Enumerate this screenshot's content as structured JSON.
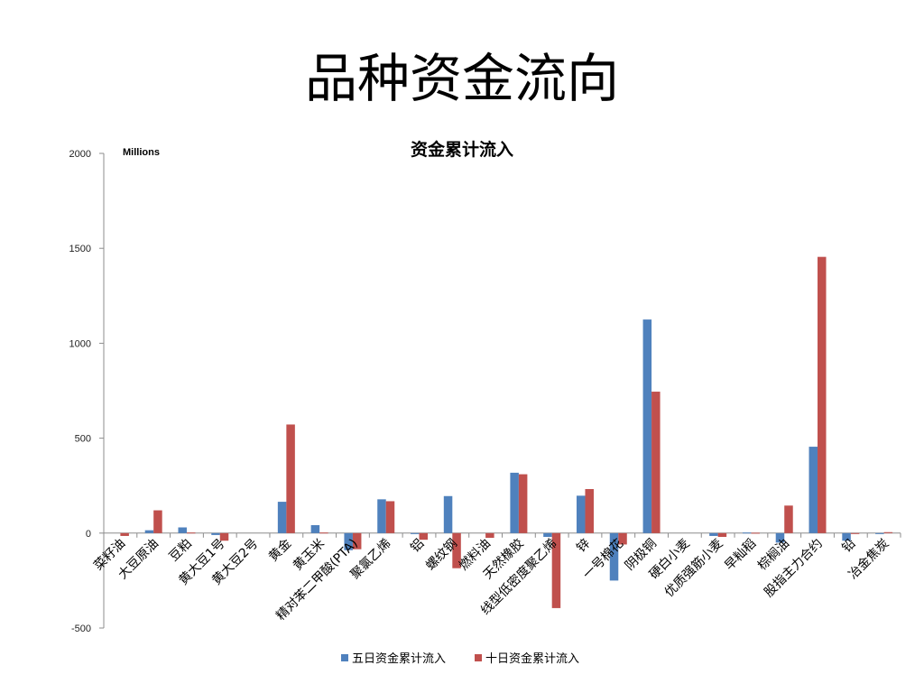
{
  "page": {
    "title": "品种资金流向"
  },
  "chart_data": {
    "type": "bar",
    "title": "资金累计流入",
    "unit_label": "Millions",
    "ylim": [
      -500,
      2000
    ],
    "yticks": [
      -500,
      0,
      500,
      1000,
      1500,
      2000
    ],
    "grid": false,
    "legend_position": "bottom",
    "categories": [
      "菜籽油",
      "大豆原油",
      "豆粕",
      "黄大豆1号",
      "黄大豆2号",
      "黄金",
      "黄玉米",
      "精对苯二甲酸(PTA)",
      "聚氯乙烯",
      "铝",
      "螺纹钢",
      "燃料油",
      "天然橡胶",
      "线型低密度聚乙烯",
      "锌",
      "一号棉花",
      "阴极铜",
      "硬白小麦",
      "优质强筋小麦",
      "早籼稻",
      "棕榈油",
      "股指主力合约",
      "铅",
      "冶金焦炭"
    ],
    "series": [
      {
        "name": "五日资金累计流入",
        "color": "#4F81BD",
        "values": [
          0,
          15,
          30,
          -10,
          0,
          165,
          42,
          -90,
          178,
          -5,
          195,
          0,
          318,
          -20,
          197,
          -250,
          1125,
          0,
          -15,
          3,
          -50,
          455,
          -40,
          -5
        ]
      },
      {
        "name": "十日资金累计流入",
        "color": "#C0504D",
        "values": [
          -15,
          120,
          3,
          -40,
          0,
          572,
          3,
          -85,
          168,
          -35,
          -185,
          -25,
          310,
          -395,
          232,
          -60,
          745,
          0,
          -20,
          2,
          145,
          1455,
          -3,
          5
        ]
      }
    ]
  }
}
